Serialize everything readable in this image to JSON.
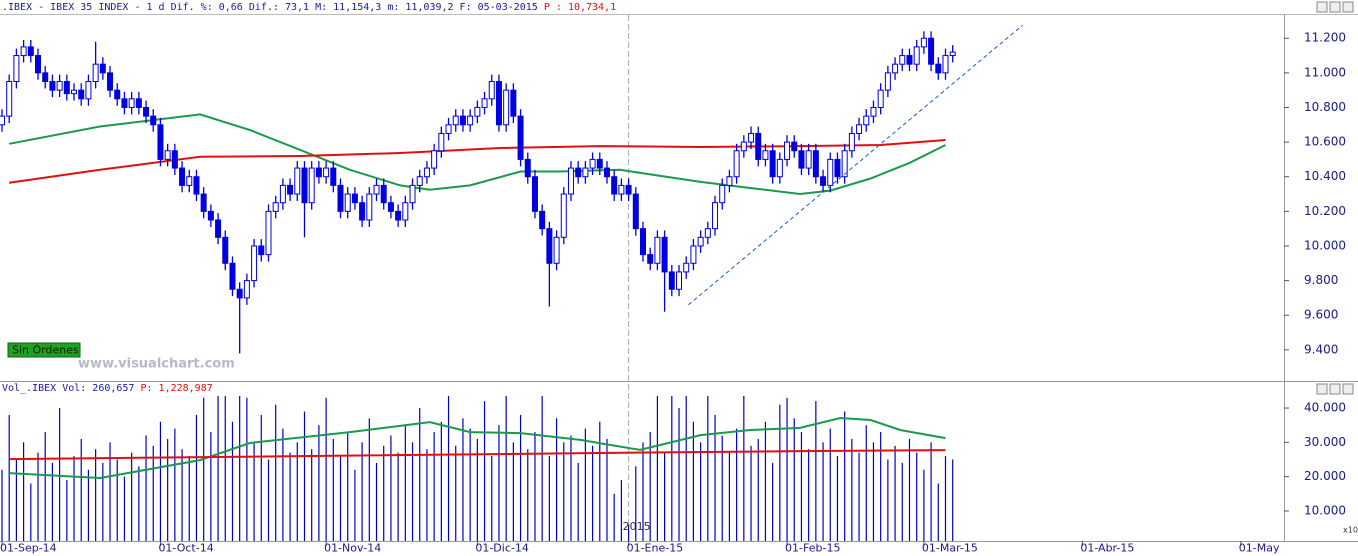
{
  "chart_data": {
    "type": "candlestick",
    "header": ".IBEX - IBEX 35 INDEX -   1 d Dif. %: 0,66 Dif.: 73,1 M: 11,154,3 m: 11,039,2 F: 05-03-2015",
    "header_last": "P : 10,734,1",
    "status": "Sin Órdenes",
    "watermark": "www.visualchart.com",
    "year_label": "2015",
    "scale_note": "x10",
    "xlim": [
      0,
      178
    ],
    "xticks": [
      {
        "value": 0,
        "label": "01-Sep-14"
      },
      {
        "value": 22,
        "label": "01-Oct-14"
      },
      {
        "value": 45,
        "label": "01-Nov-14"
      },
      {
        "value": 66,
        "label": "01-Dic-14"
      },
      {
        "value": 87,
        "label": "01-Ene-15"
      },
      {
        "value": 109,
        "label": "01-Feb-15"
      },
      {
        "value": 128,
        "label": "01-Mar-15"
      },
      {
        "value": 150,
        "label": "01-Abr-15"
      },
      {
        "value": 172,
        "label": "01-May"
      }
    ],
    "year_tick": 87,
    "price": {
      "ylim": [
        9220,
        11340
      ],
      "yticks": [
        {
          "value": 9400,
          "label": "9.400"
        },
        {
          "value": 9600,
          "label": "9.600"
        },
        {
          "value": 9800,
          "label": "9.800"
        },
        {
          "value": 10000,
          "label": "10.000"
        },
        {
          "value": 10200,
          "label": "10.200"
        },
        {
          "value": 10400,
          "label": "10.400"
        },
        {
          "value": 10600,
          "label": "10.600"
        },
        {
          "value": 10800,
          "label": "10.800"
        },
        {
          "value": 11000,
          "label": "11.000"
        },
        {
          "value": 11200,
          "label": "11.200"
        }
      ],
      "color": "#0000e0",
      "ohlc": [
        [
          10700,
          10790,
          10660,
          10750
        ],
        [
          10750,
          10990,
          10710,
          10950
        ],
        [
          10950,
          11140,
          10910,
          11100
        ],
        [
          11100,
          11190,
          11060,
          11150
        ],
        [
          11150,
          11190,
          11060,
          11100
        ],
        [
          11100,
          11140,
          10960,
          11000
        ],
        [
          11000,
          11040,
          10910,
          10950
        ],
        [
          10950,
          10990,
          10860,
          10900
        ],
        [
          10900,
          10990,
          10860,
          10950
        ],
        [
          10950,
          10990,
          10840,
          10880
        ],
        [
          10880,
          10940,
          10840,
          10900
        ],
        [
          10900,
          10940,
          10810,
          10850
        ],
        [
          10850,
          10990,
          10810,
          10950
        ],
        [
          10950,
          11180,
          10910,
          11050
        ],
        [
          11050,
          11090,
          10960,
          11000
        ],
        [
          11000,
          11040,
          10860,
          10900
        ],
        [
          10900,
          10940,
          10810,
          10850
        ],
        [
          10850,
          10890,
          10760,
          10800
        ],
        [
          10800,
          10890,
          10760,
          10850
        ],
        [
          10850,
          10890,
          10760,
          10800
        ],
        [
          10800,
          10840,
          10710,
          10750
        ],
        [
          10750,
          10790,
          10660,
          10700
        ],
        [
          10700,
          10740,
          10460,
          10500
        ],
        [
          10500,
          10590,
          10460,
          10550
        ],
        [
          10550,
          10590,
          10410,
          10450
        ],
        [
          10450,
          10490,
          10310,
          10350
        ],
        [
          10350,
          10440,
          10310,
          10400
        ],
        [
          10400,
          10440,
          10260,
          10300
        ],
        [
          10300,
          10340,
          10160,
          10200
        ],
        [
          10200,
          10240,
          10110,
          10150
        ],
        [
          10150,
          10190,
          10010,
          10050
        ],
        [
          10050,
          10090,
          9860,
          9900
        ],
        [
          9900,
          9940,
          9710,
          9750
        ],
        [
          9750,
          9790,
          9380,
          9700
        ],
        [
          9700,
          9840,
          9660,
          9800
        ],
        [
          9800,
          10040,
          9760,
          10000
        ],
        [
          10000,
          10040,
          9910,
          9950
        ],
        [
          9950,
          10240,
          9910,
          10200
        ],
        [
          10200,
          10290,
          10160,
          10250
        ],
        [
          10250,
          10390,
          10210,
          10350
        ],
        [
          10350,
          10390,
          10260,
          10300
        ],
        [
          10300,
          10490,
          10260,
          10450
        ],
        [
          10450,
          10490,
          10050,
          10250
        ],
        [
          10250,
          10490,
          10210,
          10450
        ],
        [
          10450,
          10490,
          10360,
          10400
        ],
        [
          10400,
          10490,
          10360,
          10450
        ],
        [
          10450,
          10490,
          10310,
          10350
        ],
        [
          10350,
          10390,
          10160,
          10200
        ],
        [
          10200,
          10340,
          10160,
          10300
        ],
        [
          10300,
          10340,
          10210,
          10250
        ],
        [
          10250,
          10290,
          10110,
          10150
        ],
        [
          10150,
          10340,
          10110,
          10300
        ],
        [
          10300,
          10390,
          10260,
          10350
        ],
        [
          10350,
          10390,
          10210,
          10250
        ],
        [
          10250,
          10290,
          10160,
          10200
        ],
        [
          10200,
          10240,
          10110,
          10150
        ],
        [
          10150,
          10290,
          10110,
          10250
        ],
        [
          10250,
          10390,
          10210,
          10350
        ],
        [
          10350,
          10440,
          10310,
          10400
        ],
        [
          10400,
          10490,
          10360,
          10450
        ],
        [
          10450,
          10590,
          10410,
          10550
        ],
        [
          10550,
          10690,
          10510,
          10650
        ],
        [
          10650,
          10740,
          10610,
          10700
        ],
        [
          10700,
          10790,
          10660,
          10750
        ],
        [
          10750,
          10790,
          10660,
          10700
        ],
        [
          10700,
          10790,
          10660,
          10750
        ],
        [
          10750,
          10840,
          10710,
          10800
        ],
        [
          10800,
          10890,
          10760,
          10850
        ],
        [
          10850,
          10990,
          10810,
          10950
        ],
        [
          10950,
          10990,
          10660,
          10700
        ],
        [
          10700,
          10940,
          10660,
          10900
        ],
        [
          10900,
          10940,
          10710,
          10750
        ],
        [
          10750,
          10790,
          10460,
          10500
        ],
        [
          10500,
          10540,
          10360,
          10400
        ],
        [
          10400,
          10440,
          10160,
          10200
        ],
        [
          10200,
          10240,
          10060,
          10100
        ],
        [
          10100,
          10140,
          9650,
          9900
        ],
        [
          9900,
          10090,
          9860,
          10050
        ],
        [
          10050,
          10340,
          10010,
          10300
        ],
        [
          10300,
          10490,
          10260,
          10450
        ],
        [
          10450,
          10490,
          10360,
          10400
        ],
        [
          10400,
          10490,
          10360,
          10450
        ],
        [
          10450,
          10540,
          10410,
          10500
        ],
        [
          10500,
          10540,
          10410,
          10450
        ],
        [
          10450,
          10490,
          10360,
          10400
        ],
        [
          10400,
          10440,
          10260,
          10300
        ],
        [
          10300,
          10390,
          10260,
          10350
        ],
        [
          10350,
          10390,
          10260,
          10300
        ],
        [
          10300,
          10340,
          10060,
          10100
        ],
        [
          10100,
          10140,
          9910,
          9950
        ],
        [
          9950,
          9990,
          9860,
          9900
        ],
        [
          9900,
          10090,
          9860,
          10050
        ],
        [
          10050,
          10090,
          9620,
          9850
        ],
        [
          9850,
          9890,
          9710,
          9750
        ],
        [
          9750,
          9890,
          9710,
          9850
        ],
        [
          9850,
          9940,
          9810,
          9900
        ],
        [
          9900,
          10040,
          9860,
          10000
        ],
        [
          10000,
          10090,
          9960,
          10050
        ],
        [
          10050,
          10140,
          10010,
          10100
        ],
        [
          10100,
          10290,
          10060,
          10250
        ],
        [
          10250,
          10390,
          10210,
          10350
        ],
        [
          10350,
          10440,
          10310,
          10400
        ],
        [
          10400,
          10590,
          10360,
          10550
        ],
        [
          10550,
          10640,
          10510,
          10600
        ],
        [
          10600,
          10690,
          10560,
          10650
        ],
        [
          10650,
          10690,
          10460,
          10500
        ],
        [
          10500,
          10590,
          10460,
          10550
        ],
        [
          10550,
          10590,
          10360,
          10400
        ],
        [
          10400,
          10540,
          10360,
          10500
        ],
        [
          10500,
          10640,
          10460,
          10600
        ],
        [
          10600,
          10640,
          10510,
          10550
        ],
        [
          10550,
          10590,
          10410,
          10450
        ],
        [
          10450,
          10590,
          10410,
          10550
        ],
        [
          10550,
          10590,
          10360,
          10400
        ],
        [
          10400,
          10440,
          10310,
          10350
        ],
        [
          10350,
          10540,
          10310,
          10500
        ],
        [
          10500,
          10540,
          10360,
          10400
        ],
        [
          10400,
          10590,
          10360,
          10550
        ],
        [
          10550,
          10690,
          10510,
          10650
        ],
        [
          10650,
          10740,
          10610,
          10700
        ],
        [
          10700,
          10790,
          10660,
          10750
        ],
        [
          10750,
          10840,
          10710,
          10800
        ],
        [
          10800,
          10940,
          10760,
          10900
        ],
        [
          10900,
          11040,
          10860,
          11000
        ],
        [
          11000,
          11090,
          10960,
          11050
        ],
        [
          11050,
          11140,
          11010,
          11100
        ],
        [
          11100,
          11140,
          11010,
          11050
        ],
        [
          11050,
          11190,
          11010,
          11150
        ],
        [
          11150,
          11240,
          11110,
          11200
        ],
        [
          11200,
          11240,
          11010,
          11050
        ],
        [
          11050,
          11090,
          10960,
          11000
        ],
        [
          11000,
          11140,
          10960,
          11100
        ],
        [
          11100,
          11160,
          11060,
          11120
        ]
      ],
      "lines": [
        {
          "color": "#1a9a4a",
          "x": [
            1,
            13.6,
            27.5,
            34.4,
            41.4,
            48.3,
            55.3,
            59.4,
            65,
            72,
            77.5,
            85.8,
            91.4,
            97,
            103.9,
            110.8,
            115,
            120.6,
            126,
            131
          ],
          "values": [
            10590,
            10690,
            10760,
            10670,
            10555,
            10440,
            10350,
            10325,
            10350,
            10430,
            10430,
            10440,
            10405,
            10370,
            10335,
            10300,
            10320,
            10390,
            10480,
            10583
          ]
        },
        {
          "color": "#e01010",
          "x": [
            1,
            13.6,
            27.5,
            41.4,
            55.3,
            69.2,
            83,
            97,
            110.8,
            122,
            131
          ],
          "values": [
            10365,
            10440,
            10515,
            10520,
            10537,
            10566,
            10577,
            10572,
            10577,
            10583,
            10612
          ]
        }
      ],
      "trendline": {
        "color": "#1a5ad0",
        "x": [
          95.3,
          141.7
        ],
        "values": [
          9660,
          11275
        ]
      }
    },
    "volume": {
      "header": "Vol_.IBEX Vol: 260,657",
      "header_last": "P: 1,228,987",
      "ylim": [
        1250,
        43800
      ],
      "yticks": [
        {
          "value": 10000,
          "label": "10.000"
        },
        {
          "value": 20000,
          "label": "20.000"
        },
        {
          "value": 30000,
          "label": "30.000"
        },
        {
          "value": 40000,
          "label": "40.000"
        }
      ],
      "color": "#0000c0",
      "values": [
        22000,
        38000,
        25000,
        30000,
        18000,
        27000,
        33000,
        24000,
        40000,
        19000,
        26000,
        31000,
        22000,
        28000,
        24000,
        30000,
        25000,
        20000,
        27000,
        23000,
        32000,
        29000,
        36000,
        31000,
        34000,
        28000,
        26000,
        38000,
        43000,
        33000,
        43500,
        43500,
        36000,
        43500,
        43000,
        30000,
        38000,
        25000,
        41000,
        34000,
        27000,
        30000,
        39000,
        28000,
        35000,
        43000,
        31000,
        26000,
        33000,
        22000,
        30000,
        37000,
        24000,
        29000,
        32000,
        27000,
        35000,
        30000,
        40000,
        28000,
        33000,
        36000,
        43500,
        29000,
        37000,
        34000,
        31000,
        42000,
        26000,
        35000,
        43500,
        30000,
        38000,
        28000,
        33000,
        43500,
        26000,
        37000,
        30000,
        32000,
        24000,
        34000,
        29000,
        36000,
        31000,
        15000,
        19000,
        6000,
        23000,
        30000,
        33000,
        43500,
        27000,
        43500,
        40000,
        43500,
        36000,
        30000,
        43500,
        38000,
        32000,
        27000,
        34000,
        43500,
        29000,
        31000,
        36000,
        24000,
        41000,
        43000,
        37000,
        33000,
        28000,
        42000,
        30000,
        34000,
        26000,
        39000,
        31000,
        27000,
        35000,
        30000,
        33000,
        25000,
        29000,
        24000,
        31000,
        27000,
        22000,
        30000,
        18000,
        26000,
        25000
      ],
      "lines": [
        {
          "color": "#1a9a4a",
          "x": [
            1,
            13.6,
            27.5,
            34.4,
            48.3,
            59.4,
            65,
            72,
            80.3,
            88.6,
            97,
            103.9,
            110.8,
            116.4,
            120.6,
            124.7,
            131
          ],
          "values": [
            21050,
            19600,
            24840,
            29800,
            33000,
            35900,
            33000,
            32700,
            30700,
            27800,
            32100,
            33600,
            34200,
            37100,
            36500,
            33600,
            31250
          ]
        },
        {
          "color": "#e01010",
          "x": [
            1,
            41.4,
            83,
            110.8,
            131
          ],
          "values": [
            25130,
            26000,
            26900,
            27450,
            27750
          ]
        }
      ]
    }
  }
}
